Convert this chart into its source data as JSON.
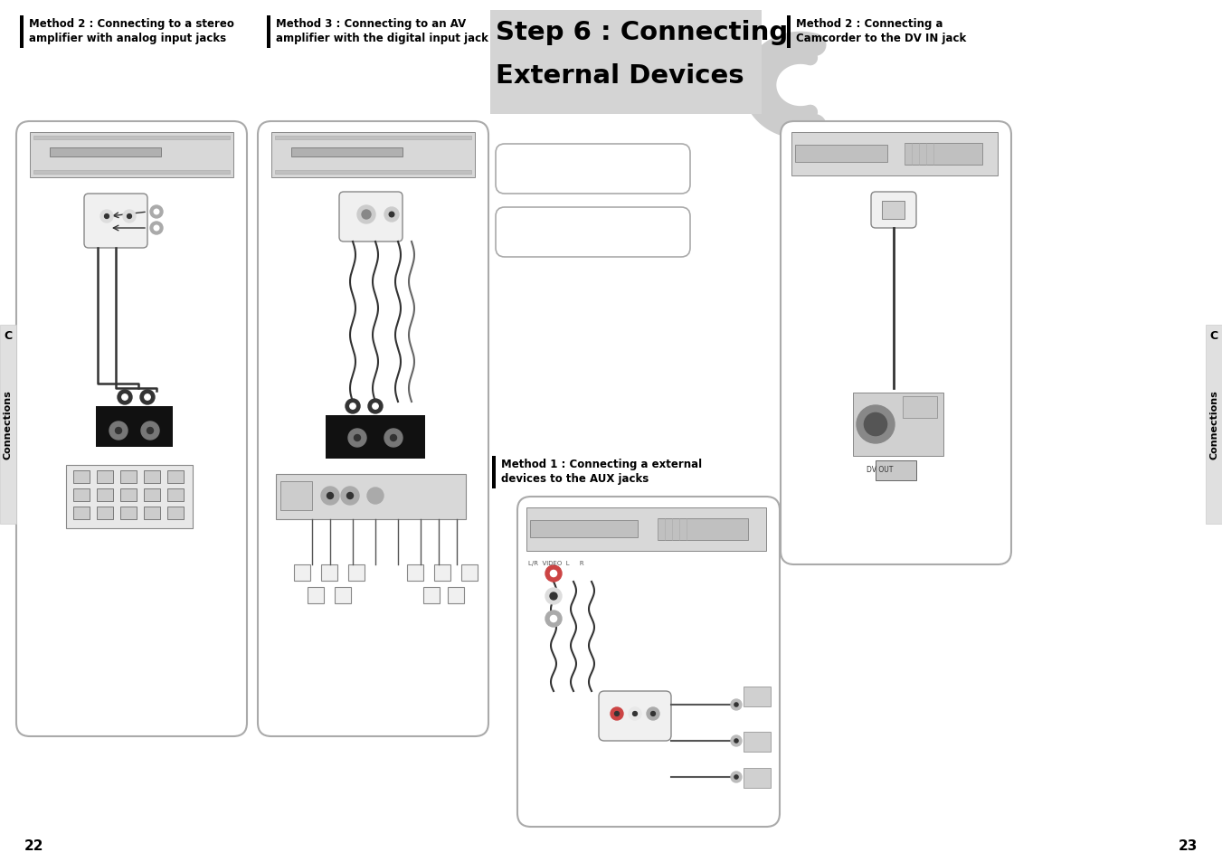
{
  "bg_color": "#ffffff",
  "title_text_line1": "Step 6 : Connecting",
  "title_text_line2": "External Devices",
  "title_bg": "#d4d4d4",
  "method_left1_line1": "Method 2 : Connecting to a stereo",
  "method_left1_line2": "amplifier with analog input jacks",
  "method_left2_line1": "Method 3 : Connecting to an AV",
  "method_left2_line2": "amplifier with the digital input jack",
  "method_right1_line1": "Method 2 : Connecting a",
  "method_right1_line2": "Camcorder to the DV IN jack",
  "method_bottom_line1": "Method 1 : Connecting a external",
  "method_bottom_line2": "devices to the AUX jacks",
  "page_num_left": "22",
  "page_num_right": "23",
  "side_tab_text": "Connections",
  "bar_color": "#000000",
  "box_edge_color": "#aaaaaa"
}
